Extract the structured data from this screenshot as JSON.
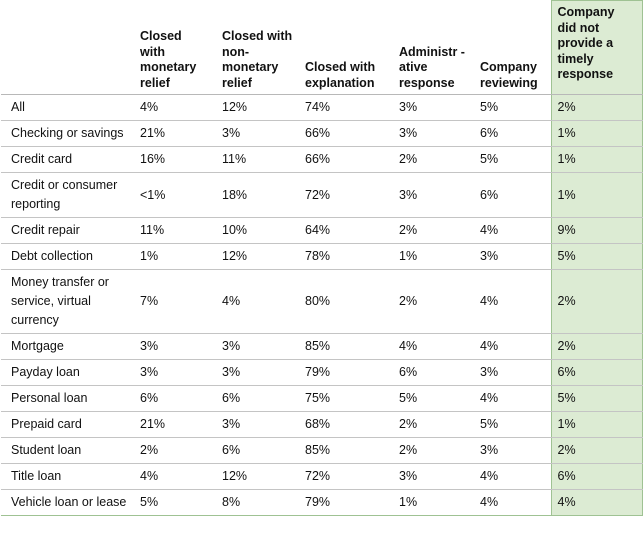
{
  "table": {
    "headers": [
      "",
      "Closed with monetary relief",
      "Closed with non-monetary relief",
      "Closed with explanation",
      "Administr -ative response",
      "Company reviewing",
      "Company did not provide a timely response"
    ],
    "highlight_color": "#dcebd3",
    "rows": [
      [
        "All",
        "4%",
        "12%",
        "74%",
        "3%",
        "5%",
        "2%"
      ],
      [
        "Checking or savings",
        "21%",
        "3%",
        "66%",
        "3%",
        "6%",
        "1%"
      ],
      [
        "Credit card",
        "16%",
        "11%",
        "66%",
        "2%",
        "5%",
        "1%"
      ],
      [
        "Credit or consumer reporting",
        "<1%",
        "18%",
        "72%",
        "3%",
        "6%",
        "1%"
      ],
      [
        "Credit repair",
        "11%",
        "10%",
        "64%",
        "2%",
        "4%",
        "9%"
      ],
      [
        "Debt collection",
        "1%",
        "12%",
        "78%",
        "1%",
        "3%",
        "5%"
      ],
      [
        "Money transfer or service, virtual currency",
        "7%",
        "4%",
        "80%",
        "2%",
        "4%",
        "2%"
      ],
      [
        "Mortgage",
        "3%",
        "3%",
        "85%",
        "4%",
        "4%",
        "2%"
      ],
      [
        "Payday loan",
        "3%",
        "3%",
        "79%",
        "6%",
        "3%",
        "6%"
      ],
      [
        "Personal loan",
        "6%",
        "6%",
        "75%",
        "5%",
        "4%",
        "5%"
      ],
      [
        "Prepaid card",
        "21%",
        "3%",
        "68%",
        "2%",
        "5%",
        "1%"
      ],
      [
        "Student loan",
        "2%",
        "6%",
        "85%",
        "2%",
        "3%",
        "2%"
      ],
      [
        "Title loan",
        "4%",
        "12%",
        "72%",
        "3%",
        "4%",
        "6%"
      ],
      [
        "Vehicle loan or lease",
        "5%",
        "8%",
        "79%",
        "1%",
        "4%",
        "4%"
      ]
    ]
  }
}
